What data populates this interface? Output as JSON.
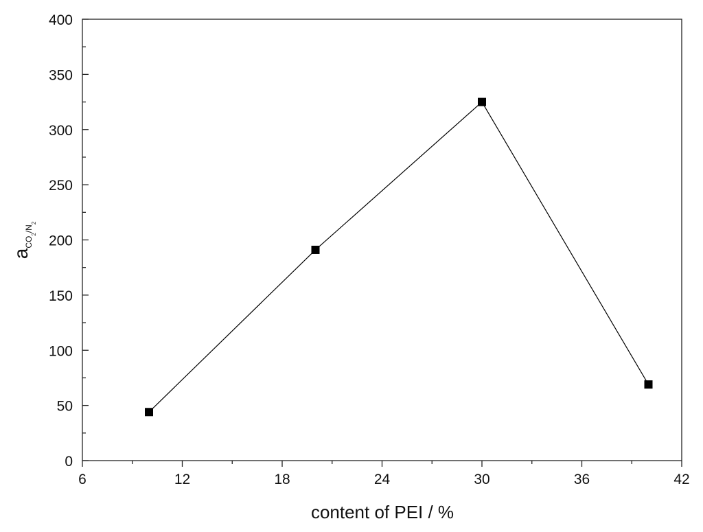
{
  "chart_data": {
    "type": "line",
    "xlabel": "content of PEI / %",
    "ylabel_parts": [
      "a",
      "CO",
      "2",
      "/N",
      "2"
    ],
    "x": [
      10,
      20,
      30,
      40
    ],
    "series": [
      {
        "name": "a",
        "color": "#000000",
        "values": [
          44,
          191,
          325,
          69
        ]
      }
    ],
    "xlim": [
      6,
      42
    ],
    "xticks": [
      6,
      12,
      18,
      24,
      30,
      36,
      42
    ],
    "ylim": [
      0,
      400
    ],
    "yticks": [
      0,
      50,
      100,
      150,
      200,
      250,
      300,
      350,
      400
    ],
    "grid": false
  }
}
